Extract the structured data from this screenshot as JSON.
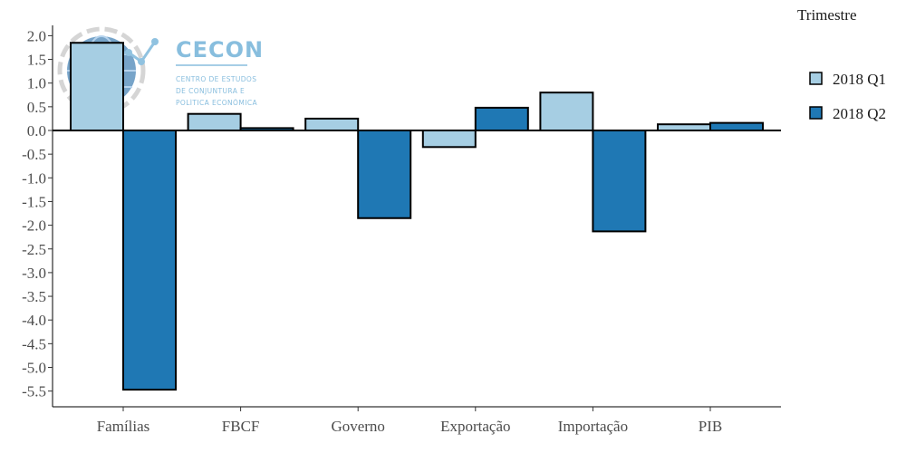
{
  "colors": {
    "series_q1": "#a6cee3",
    "series_q2": "#1f78b4",
    "bar_outline": "#000000",
    "axis": "#000000",
    "logo": "#6baed6"
  },
  "watermark": {
    "title": "CECON",
    "lines": [
      "CENTRO DE ESTUDOS",
      "DE CONJUNTURA E",
      "POLÍTICA ECONÔMICA"
    ]
  },
  "chart_data": {
    "type": "bar",
    "categories": [
      "Famílias",
      "FBCF",
      "Governo",
      "Exportação",
      "Importação",
      "PIB"
    ],
    "series": [
      {
        "name": "2018 Q1",
        "values": [
          1.85,
          0.35,
          0.25,
          -0.35,
          0.8,
          0.13
        ]
      },
      {
        "name": "2018 Q2",
        "values": [
          -5.47,
          0.05,
          -1.85,
          0.48,
          -2.13,
          0.16
        ]
      }
    ],
    "y_ticks": [
      "2.0",
      "1.5",
      "1.0",
      "0.5",
      "0.0",
      "-0.5",
      "-1.0",
      "-1.5",
      "-2.0",
      "-2.5",
      "-3.0",
      "-3.5",
      "-4.0",
      "-4.5",
      "-5.0",
      "-5.5"
    ],
    "y_tick_values": [
      2.0,
      1.5,
      1.0,
      0.5,
      0.0,
      -0.5,
      -1.0,
      -1.5,
      -2.0,
      -2.5,
      -3.0,
      -3.5,
      -4.0,
      -4.5,
      -5.0,
      -5.5
    ],
    "ylim": [
      -5.8,
      2.2
    ],
    "xlabel": "",
    "ylabel": "",
    "title": "",
    "legend_title": "Trimestre",
    "legend_position": "right",
    "grid": false
  }
}
